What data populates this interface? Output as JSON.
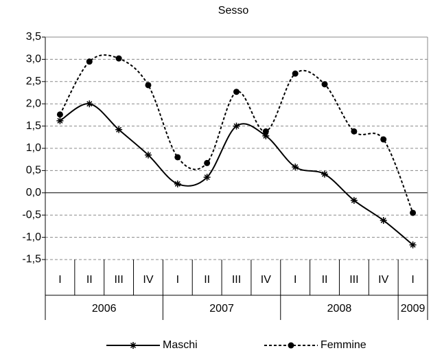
{
  "chart_data": {
    "type": "line",
    "title": "Sesso",
    "categories": [
      "I",
      "II",
      "III",
      "IV",
      "I",
      "II",
      "III",
      "IV",
      "I",
      "II",
      "III",
      "IV",
      "I"
    ],
    "groups": [
      "2006",
      "2007",
      "2008",
      "2009"
    ],
    "series": [
      {
        "name": "Maschi",
        "color": "#000000",
        "marker": "asterisk",
        "dashed": false,
        "values": [
          1.62,
          2.0,
          1.42,
          0.85,
          0.2,
          0.35,
          1.5,
          1.28,
          0.58,
          0.42,
          -0.17,
          -0.62,
          -1.17
        ]
      },
      {
        "name": "Femmine",
        "color": "#000000",
        "marker": "circle",
        "dashed": true,
        "values": [
          1.76,
          2.95,
          3.02,
          2.42,
          0.8,
          0.67,
          2.27,
          1.38,
          2.68,
          2.44,
          1.38,
          1.2,
          -0.45
        ]
      }
    ],
    "ylim": [
      -1.5,
      3.5
    ],
    "yticks": [
      {
        "value": -1.5,
        "label": "-1,5"
      },
      {
        "value": -1,
        "label": "-1,0"
      },
      {
        "value": -0.5,
        "label": "-0,5"
      },
      {
        "value": 0,
        "label": "0,0"
      },
      {
        "value": 0.5,
        "label": "0,5"
      },
      {
        "value": 1,
        "label": "1,0"
      },
      {
        "value": 1.5,
        "label": "1,5"
      },
      {
        "value": 2,
        "label": "2,0"
      },
      {
        "value": 2.5,
        "label": "2,5"
      },
      {
        "value": 3,
        "label": "3,0"
      },
      {
        "value": 3.5,
        "label": "3,5"
      }
    ],
    "grid": true,
    "smooth": true,
    "legend": "bottom"
  }
}
